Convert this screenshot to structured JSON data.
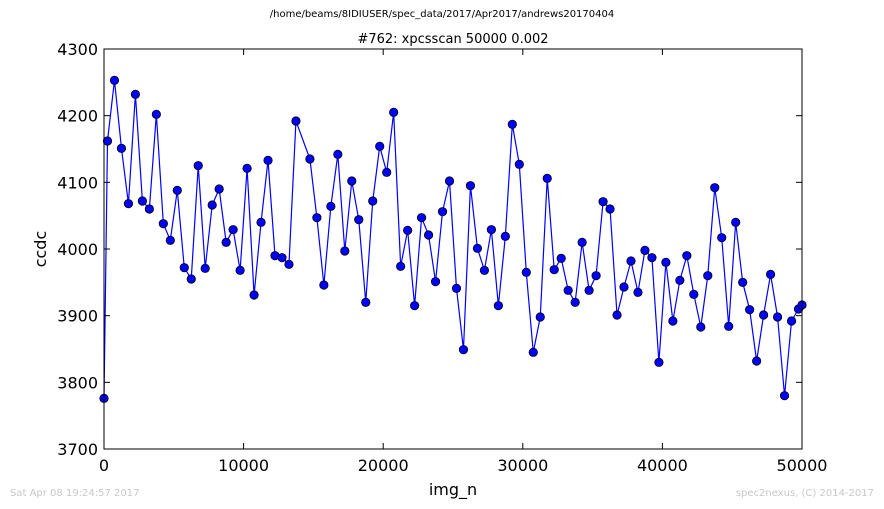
{
  "header": {
    "path": "/home/beams/8IDIUSER/spec_data/2017/Apr2017/andrews20170404"
  },
  "footer": {
    "timestamp": "Sat Apr 08 19:24:57 2017",
    "credit": "spec2nexus, (C) 2014-2017"
  },
  "colors": {
    "series": "#0000ff",
    "axes": "#000000",
    "footer_text": "#c8c8c8"
  },
  "chart_data": {
    "type": "line",
    "title": "#762: xpcsscan 50000 0.002",
    "xlabel": "img_n",
    "ylabel": "ccdc",
    "xlim": [
      0,
      50000
    ],
    "ylim": [
      3700,
      4300
    ],
    "xticks": [
      "0",
      "10000",
      "20000",
      "30000",
      "40000",
      "50000"
    ],
    "yticks": [
      "3700",
      "3800",
      "3900",
      "4000",
      "4100",
      "4200",
      "4300"
    ],
    "grid": false,
    "markers": "circle",
    "series": [
      {
        "x": [
          0,
          250,
          750,
          1250,
          1750,
          2250,
          2750,
          3250,
          3750,
          4250,
          4750,
          5250,
          5750,
          6250,
          6750,
          7250,
          7750,
          8250,
          8750,
          9250,
          9750,
          10250,
          10750,
          11250,
          11750,
          12250,
          12750,
          13250,
          13750,
          14750,
          15250,
          15750,
          16250,
          16750,
          17250,
          17750,
          18250,
          18750,
          19250,
          19750,
          20250,
          20750,
          21250,
          21750,
          22250,
          22750,
          23250,
          23750,
          24250,
          24750,
          25250,
          25750,
          26250,
          26750,
          27250,
          27750,
          28250,
          28750,
          29250,
          29750,
          30250,
          30750,
          31250,
          31750,
          32250,
          32750,
          33250,
          33750,
          34250,
          34750,
          35250,
          35750,
          36250,
          36750,
          37250,
          37750,
          38250,
          38750,
          39250,
          39750,
          40250,
          40750,
          41250,
          41750,
          42250,
          42750,
          43250,
          43750,
          44250,
          44750,
          45250,
          45750,
          46250,
          46750,
          47250,
          47750,
          48250,
          48750,
          49250,
          49750,
          50000
        ],
        "y": [
          3776,
          4162,
          4253,
          4151,
          4068,
          4232,
          4072,
          4060,
          4202,
          4038,
          4013,
          4088,
          3972,
          3955,
          4125,
          3971,
          4066,
          4090,
          4010,
          4029,
          3968,
          4121,
          3931,
          4040,
          4133,
          3990,
          3987,
          3977,
          4192,
          4135,
          4047,
          3946,
          4064,
          4142,
          3997,
          4102,
          4044,
          3920,
          4072,
          4154,
          4115,
          4205,
          3974,
          4028,
          3915,
          4047,
          4021,
          3951,
          4056,
          4102,
          3941,
          3849,
          4095,
          4001,
          3968,
          4029,
          3915,
          4019,
          4187,
          4127,
          3965,
          3845,
          3898,
          4106,
          3969,
          3986,
          3938,
          3920,
          4010,
          3938,
          3960,
          4071,
          4060,
          3901,
          3943,
          3982,
          3935,
          3998,
          3987,
          3830,
          3980,
          3892,
          3953,
          3990,
          3932,
          3883,
          3960,
          4092,
          4017,
          3884,
          4040,
          3950,
          3909,
          3832,
          3901,
          3962,
          3898,
          3780,
          3892,
          3910,
          3916
        ]
      }
    ]
  }
}
